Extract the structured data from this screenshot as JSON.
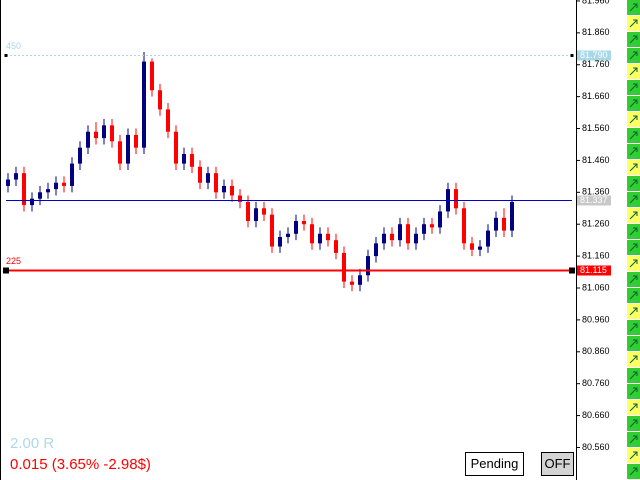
{
  "chart_data": {
    "type": "candlestick",
    "up_color": "#000080",
    "down_color": "#ff0000",
    "ylim": [
      80.458,
      81.963
    ],
    "yticks": [
      {
        "value": 81.96,
        "label": "81.960"
      },
      {
        "value": 81.86,
        "label": "81.860"
      },
      {
        "value": 81.76,
        "label": "81.760"
      },
      {
        "value": 81.66,
        "label": "81.660"
      },
      {
        "value": 81.56,
        "label": "81.560"
      },
      {
        "value": 81.46,
        "label": "81.460"
      },
      {
        "value": 81.36,
        "label": "81.360"
      },
      {
        "value": 81.26,
        "label": "81.260"
      },
      {
        "value": 81.16,
        "label": "81.160"
      },
      {
        "value": 81.06,
        "label": "81.060"
      },
      {
        "value": 80.96,
        "label": "80.960"
      },
      {
        "value": 80.86,
        "label": "80.860"
      },
      {
        "value": 80.76,
        "label": "80.760"
      },
      {
        "value": 80.66,
        "label": "80.660"
      },
      {
        "value": 80.56,
        "label": "80.560"
      }
    ],
    "open": [
      81.38,
      81.4,
      81.42,
      81.32,
      81.34,
      81.36,
      81.37,
      81.39,
      81.38,
      81.45,
      81.5,
      81.55,
      81.53,
      81.57,
      81.52,
      81.45,
      81.54,
      81.5,
      81.77,
      81.68,
      81.62,
      81.55,
      81.45,
      81.48,
      81.44,
      81.39,
      81.42,
      81.36,
      81.38,
      81.35,
      81.33,
      81.27,
      81.31,
      81.29,
      81.19,
      81.22,
      81.23,
      81.27,
      81.26,
      81.2,
      81.23,
      81.21,
      81.17,
      81.08,
      81.07,
      81.1,
      81.16,
      81.2,
      81.23,
      81.21,
      81.26,
      81.2,
      81.23,
      81.26,
      81.25,
      81.3,
      81.37,
      81.31,
      81.2,
      81.18,
      81.19,
      81.24,
      81.28,
      81.24
    ],
    "high": [
      81.42,
      81.44,
      81.44,
      81.36,
      81.38,
      81.39,
      81.41,
      81.41,
      81.47,
      81.52,
      81.57,
      81.58,
      81.59,
      81.59,
      81.54,
      81.56,
      81.56,
      81.8,
      81.78,
      81.7,
      81.64,
      81.57,
      81.5,
      81.5,
      81.46,
      81.44,
      81.44,
      81.4,
      81.4,
      81.37,
      81.35,
      81.33,
      81.33,
      81.31,
      81.24,
      81.25,
      81.29,
      81.29,
      81.28,
      81.25,
      81.25,
      81.23,
      81.19,
      81.1,
      81.12,
      81.18,
      81.22,
      81.25,
      81.25,
      81.28,
      81.28,
      81.25,
      81.28,
      81.28,
      81.32,
      81.39,
      81.39,
      81.33,
      81.22,
      81.21,
      81.26,
      81.3,
      81.31,
      81.35
    ],
    "low": [
      81.36,
      81.38,
      81.3,
      81.3,
      81.32,
      81.34,
      81.35,
      81.36,
      81.36,
      81.43,
      81.48,
      81.51,
      81.51,
      81.5,
      81.43,
      81.43,
      81.48,
      81.48,
      81.66,
      81.6,
      81.53,
      81.43,
      81.43,
      81.42,
      81.37,
      81.37,
      81.34,
      81.34,
      81.33,
      81.31,
      81.25,
      81.25,
      81.27,
      81.17,
      81.17,
      81.2,
      81.21,
      81.24,
      81.18,
      81.18,
      81.19,
      81.15,
      81.06,
      81.05,
      81.05,
      81.08,
      81.14,
      81.18,
      81.19,
      81.19,
      81.18,
      81.18,
      81.21,
      81.23,
      81.23,
      81.28,
      81.29,
      81.18,
      81.16,
      81.16,
      81.17,
      81.22,
      81.22,
      81.22
    ],
    "close": [
      81.4,
      81.42,
      81.32,
      81.34,
      81.36,
      81.37,
      81.39,
      81.38,
      81.45,
      81.5,
      81.55,
      81.53,
      81.57,
      81.52,
      81.45,
      81.54,
      81.5,
      81.77,
      81.68,
      81.62,
      81.55,
      81.45,
      81.48,
      81.44,
      81.39,
      81.42,
      81.36,
      81.38,
      81.35,
      81.33,
      81.27,
      81.31,
      81.29,
      81.19,
      81.22,
      81.23,
      81.27,
      81.26,
      81.2,
      81.23,
      81.21,
      81.17,
      81.08,
      81.07,
      81.1,
      81.16,
      81.2,
      81.23,
      81.21,
      81.26,
      81.2,
      81.23,
      81.26,
      81.25,
      81.3,
      81.37,
      81.31,
      81.2,
      81.18,
      81.19,
      81.24,
      81.28,
      81.24,
      81.33
    ],
    "levels": [
      {
        "label": "450",
        "price": 81.79,
        "price_label": "81.790",
        "color": "#a8d8e8",
        "tag_color": "#a8d8e8",
        "style": "dashed",
        "width": 1
      },
      {
        "price": 81.337,
        "price_label": "81.337",
        "color": "#0000cc",
        "tag_color": "#c8c8c8",
        "style": "solid",
        "width": 1
      },
      {
        "label": "225",
        "price": 81.115,
        "price_label": "81.115",
        "color": "#ff0000",
        "tag_color": "#ff0000",
        "style": "solid",
        "width": 2
      }
    ],
    "risk_ratio": "2.00 R",
    "status": "0.015 (3.65% -2.98$)",
    "buttons": [
      "Pending",
      "OFF"
    ]
  }
}
